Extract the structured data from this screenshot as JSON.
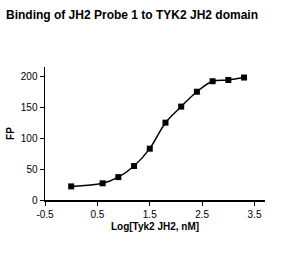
{
  "chart_data": {
    "type": "scatter",
    "title": "Binding of JH2 Probe 1 to TYK2 JH2 domain",
    "x_label": "Log[Tyk2 JH2, nM]",
    "y_label": "FP",
    "x": [
      0.0,
      0.6,
      0.9,
      1.2,
      1.5,
      1.8,
      2.1,
      2.4,
      2.7,
      3.0,
      3.3
    ],
    "values": [
      22,
      27,
      37,
      55,
      83,
      125,
      151,
      175,
      192,
      194,
      198
    ],
    "color": "#000000",
    "marker": "square",
    "line_style": "solid",
    "xlim": [
      -0.5,
      3.7
    ],
    "xticks": [
      -0.5,
      0.5,
      1.5,
      2.5,
      3.5
    ],
    "ylim": [
      0,
      215
    ],
    "yticks": [
      0,
      50,
      100,
      150,
      200
    ],
    "grid": false
  }
}
